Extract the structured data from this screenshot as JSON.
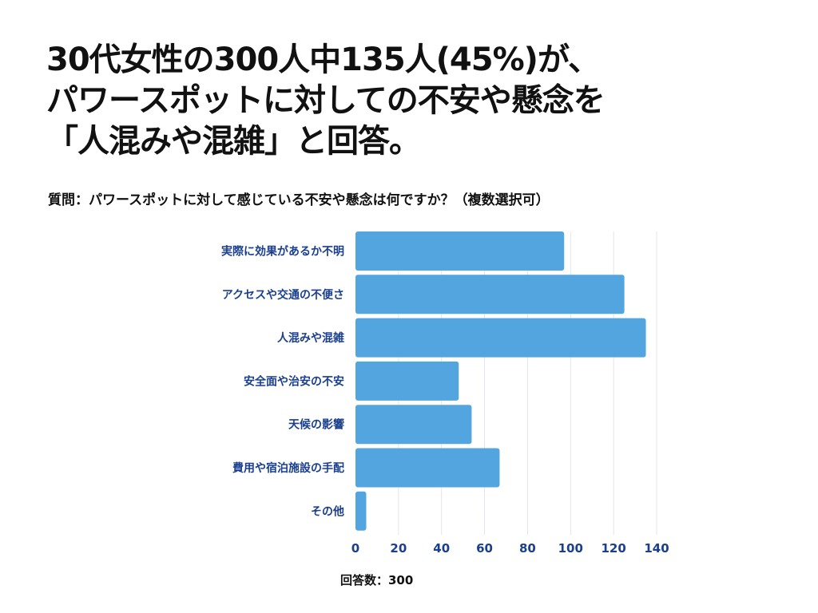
{
  "title_lines": [
    "30代女性の300人中135人(45%)が、",
    "パワースポットに対しての不安や懸念を",
    "「人混みや混雑」と回答。"
  ],
  "question": "質問：パワースポットに対して感じている不安や懸念は何ですか？（複数選択可）",
  "respondents": "回答数：300",
  "chart_data": {
    "type": "bar",
    "orientation": "horizontal",
    "categories": [
      "実際に効果があるか不明",
      "アクセスや交通の不便さ",
      "人混みや混雑",
      "安全面や治安の不安",
      "天候の影響",
      "費用や宿泊施設の手配",
      "その他"
    ],
    "values": [
      97,
      125,
      135,
      48,
      54,
      67,
      5
    ],
    "xlim": [
      0,
      140
    ],
    "xticks": [
      "0",
      "20",
      "40",
      "60",
      "80",
      "100",
      "120",
      "140"
    ],
    "grid": true,
    "bar_color": "#52a5df",
    "label_color": "#1a3f8f"
  }
}
